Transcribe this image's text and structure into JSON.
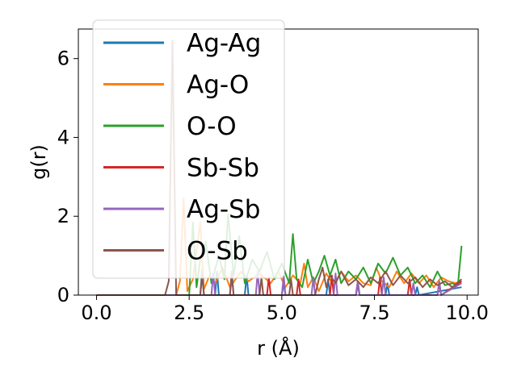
{
  "chart_data": {
    "type": "line",
    "xlabel": "r (Å)",
    "ylabel": "g(r)",
    "xlim": [
      -0.49,
      10.3
    ],
    "ylim": [
      0,
      6.75
    ],
    "xticks": [
      0.0,
      2.5,
      5.0,
      7.5,
      10.0
    ],
    "xtick_labels": [
      "0.0",
      "2.5",
      "5.0",
      "7.5",
      "10.0"
    ],
    "yticks": [
      0,
      2,
      4,
      6
    ],
    "ytick_labels": [
      "0",
      "2",
      "4",
      "6"
    ],
    "grid": false,
    "legend": "top-left",
    "series": [
      {
        "name": "Ag-Ag",
        "color": "#1f77b4",
        "x": [
          0.0,
          2.8,
          2.85,
          2.9,
          3.2,
          3.25,
          3.3,
          4.0,
          4.05,
          4.1,
          5.0,
          5.05,
          5.1,
          6.2,
          6.25,
          6.3,
          7.0,
          7.05,
          7.1,
          7.8,
          7.85,
          7.9,
          8.6,
          8.65,
          8.7,
          9.85
        ],
        "y": [
          0.0,
          0.0,
          0.65,
          0.0,
          0.0,
          0.6,
          0.0,
          0.0,
          0.5,
          0.0,
          0.0,
          0.3,
          0.0,
          0.0,
          0.4,
          0.0,
          0.0,
          0.25,
          0.0,
          0.0,
          0.3,
          0.0,
          0.0,
          0.2,
          0.0,
          0.2
        ]
      },
      {
        "name": "Ag-O",
        "color": "#ff7f0e",
        "x": [
          0.0,
          2.15,
          2.25,
          2.35,
          2.45,
          2.6,
          2.8,
          2.9,
          3.05,
          3.2,
          3.4,
          3.6,
          3.9,
          4.1,
          4.4,
          4.7,
          4.9,
          5.1,
          5.3,
          5.5,
          5.6,
          5.7,
          5.85,
          6.0,
          6.2,
          6.4,
          6.6,
          6.8,
          7.0,
          7.2,
          7.4,
          7.55,
          7.7,
          7.9,
          8.1,
          8.3,
          8.5,
          8.7,
          8.9,
          9.1,
          9.3,
          9.5,
          9.7,
          9.85
        ],
        "y": [
          0.0,
          0.0,
          0.35,
          2.45,
          0.1,
          0.4,
          1.85,
          0.15,
          0.5,
          0.3,
          0.7,
          0.2,
          0.6,
          0.35,
          0.55,
          0.3,
          0.6,
          0.2,
          0.5,
          0.3,
          0.8,
          0.2,
          0.45,
          0.1,
          0.55,
          0.25,
          0.6,
          0.35,
          0.5,
          0.3,
          0.25,
          0.7,
          0.35,
          0.2,
          0.6,
          0.3,
          0.55,
          0.3,
          0.5,
          0.2,
          0.45,
          0.35,
          0.3,
          0.4
        ]
      },
      {
        "name": "O-O",
        "color": "#2ca02c",
        "x": [
          0.0,
          2.5,
          2.6,
          2.7,
          2.8,
          2.95,
          3.1,
          3.3,
          3.45,
          3.55,
          3.7,
          3.85,
          4.0,
          4.2,
          4.4,
          4.6,
          4.8,
          5.0,
          5.2,
          5.3,
          5.4,
          5.55,
          5.7,
          5.85,
          6.0,
          6.15,
          6.3,
          6.45,
          6.6,
          6.8,
          7.0,
          7.2,
          7.4,
          7.6,
          7.8,
          8.0,
          8.2,
          8.4,
          8.6,
          8.8,
          9.0,
          9.2,
          9.4,
          9.6,
          9.75,
          9.85
        ],
        "y": [
          0.0,
          0.0,
          1.85,
          0.2,
          0.9,
          1.35,
          0.3,
          1.0,
          0.4,
          2.05,
          0.5,
          1.5,
          0.3,
          0.9,
          0.6,
          1.1,
          0.4,
          0.8,
          0.3,
          1.55,
          0.4,
          0.2,
          0.9,
          0.3,
          0.6,
          1.0,
          0.5,
          0.9,
          0.3,
          0.6,
          0.4,
          0.7,
          0.3,
          0.8,
          0.55,
          0.95,
          0.5,
          0.7,
          0.3,
          0.5,
          0.2,
          0.6,
          0.25,
          0.3,
          0.25,
          1.25
        ]
      },
      {
        "name": "Sb-Sb",
        "color": "#d62728",
        "x": [
          0.0,
          4.6,
          4.65,
          4.7,
          5.4,
          5.45,
          5.5,
          6.3,
          6.35,
          6.4,
          7.0,
          7.05,
          7.1,
          7.6,
          7.65,
          7.7,
          8.4,
          8.45,
          8.5,
          9.2,
          9.25,
          9.3,
          9.85
        ],
        "y": [
          0.0,
          0.0,
          0.45,
          0.0,
          0.0,
          0.4,
          0.0,
          0.0,
          0.5,
          0.0,
          0.0,
          0.35,
          0.0,
          0.0,
          0.45,
          0.0,
          0.0,
          0.4,
          0.0,
          0.0,
          0.3,
          0.0,
          0.35
        ]
      },
      {
        "name": "Ag-Sb",
        "color": "#9467bd",
        "x": [
          0.0,
          3.1,
          3.15,
          3.2,
          3.6,
          3.65,
          3.7,
          4.3,
          4.35,
          4.4,
          5.0,
          5.05,
          5.1,
          5.8,
          5.85,
          5.9,
          6.4,
          6.45,
          6.5,
          7.0,
          7.05,
          7.1,
          7.7,
          7.75,
          7.8,
          8.5,
          8.55,
          8.6,
          9.2,
          9.25,
          9.3,
          9.85
        ],
        "y": [
          0.0,
          0.0,
          0.55,
          0.0,
          0.0,
          0.5,
          0.0,
          0.0,
          0.6,
          0.0,
          0.0,
          0.5,
          0.0,
          0.0,
          0.45,
          0.0,
          0.0,
          0.55,
          0.0,
          0.0,
          0.35,
          0.0,
          0.0,
          0.45,
          0.0,
          0.0,
          0.3,
          0.0,
          0.0,
          0.35,
          0.0,
          0.3
        ]
      },
      {
        "name": "O-Sb",
        "color": "#8c564b",
        "x": [
          0.0,
          1.85,
          1.95,
          2.05,
          2.15,
          2.8,
          2.85,
          2.9,
          3.6,
          3.65,
          3.7,
          4.4,
          4.45,
          4.5,
          5.2,
          5.25,
          5.3,
          5.9,
          6.0,
          6.1,
          6.2,
          6.3,
          6.45,
          6.6,
          6.8,
          7.0,
          7.2,
          7.4,
          7.6,
          7.8,
          8.0,
          8.2,
          8.4,
          8.6,
          8.8,
          9.0,
          9.2,
          9.4,
          9.6,
          9.85
        ],
        "y": [
          0.0,
          0.0,
          0.35,
          6.45,
          0.0,
          0.0,
          0.5,
          0.0,
          0.0,
          0.6,
          0.0,
          0.0,
          0.45,
          0.0,
          0.0,
          0.4,
          0.0,
          0.0,
          0.4,
          0.7,
          0.2,
          0.5,
          0.3,
          0.6,
          0.25,
          0.4,
          0.2,
          0.45,
          0.3,
          0.6,
          0.25,
          0.5,
          0.3,
          0.45,
          0.2,
          0.4,
          0.25,
          0.35,
          0.2,
          0.4
        ]
      }
    ]
  }
}
